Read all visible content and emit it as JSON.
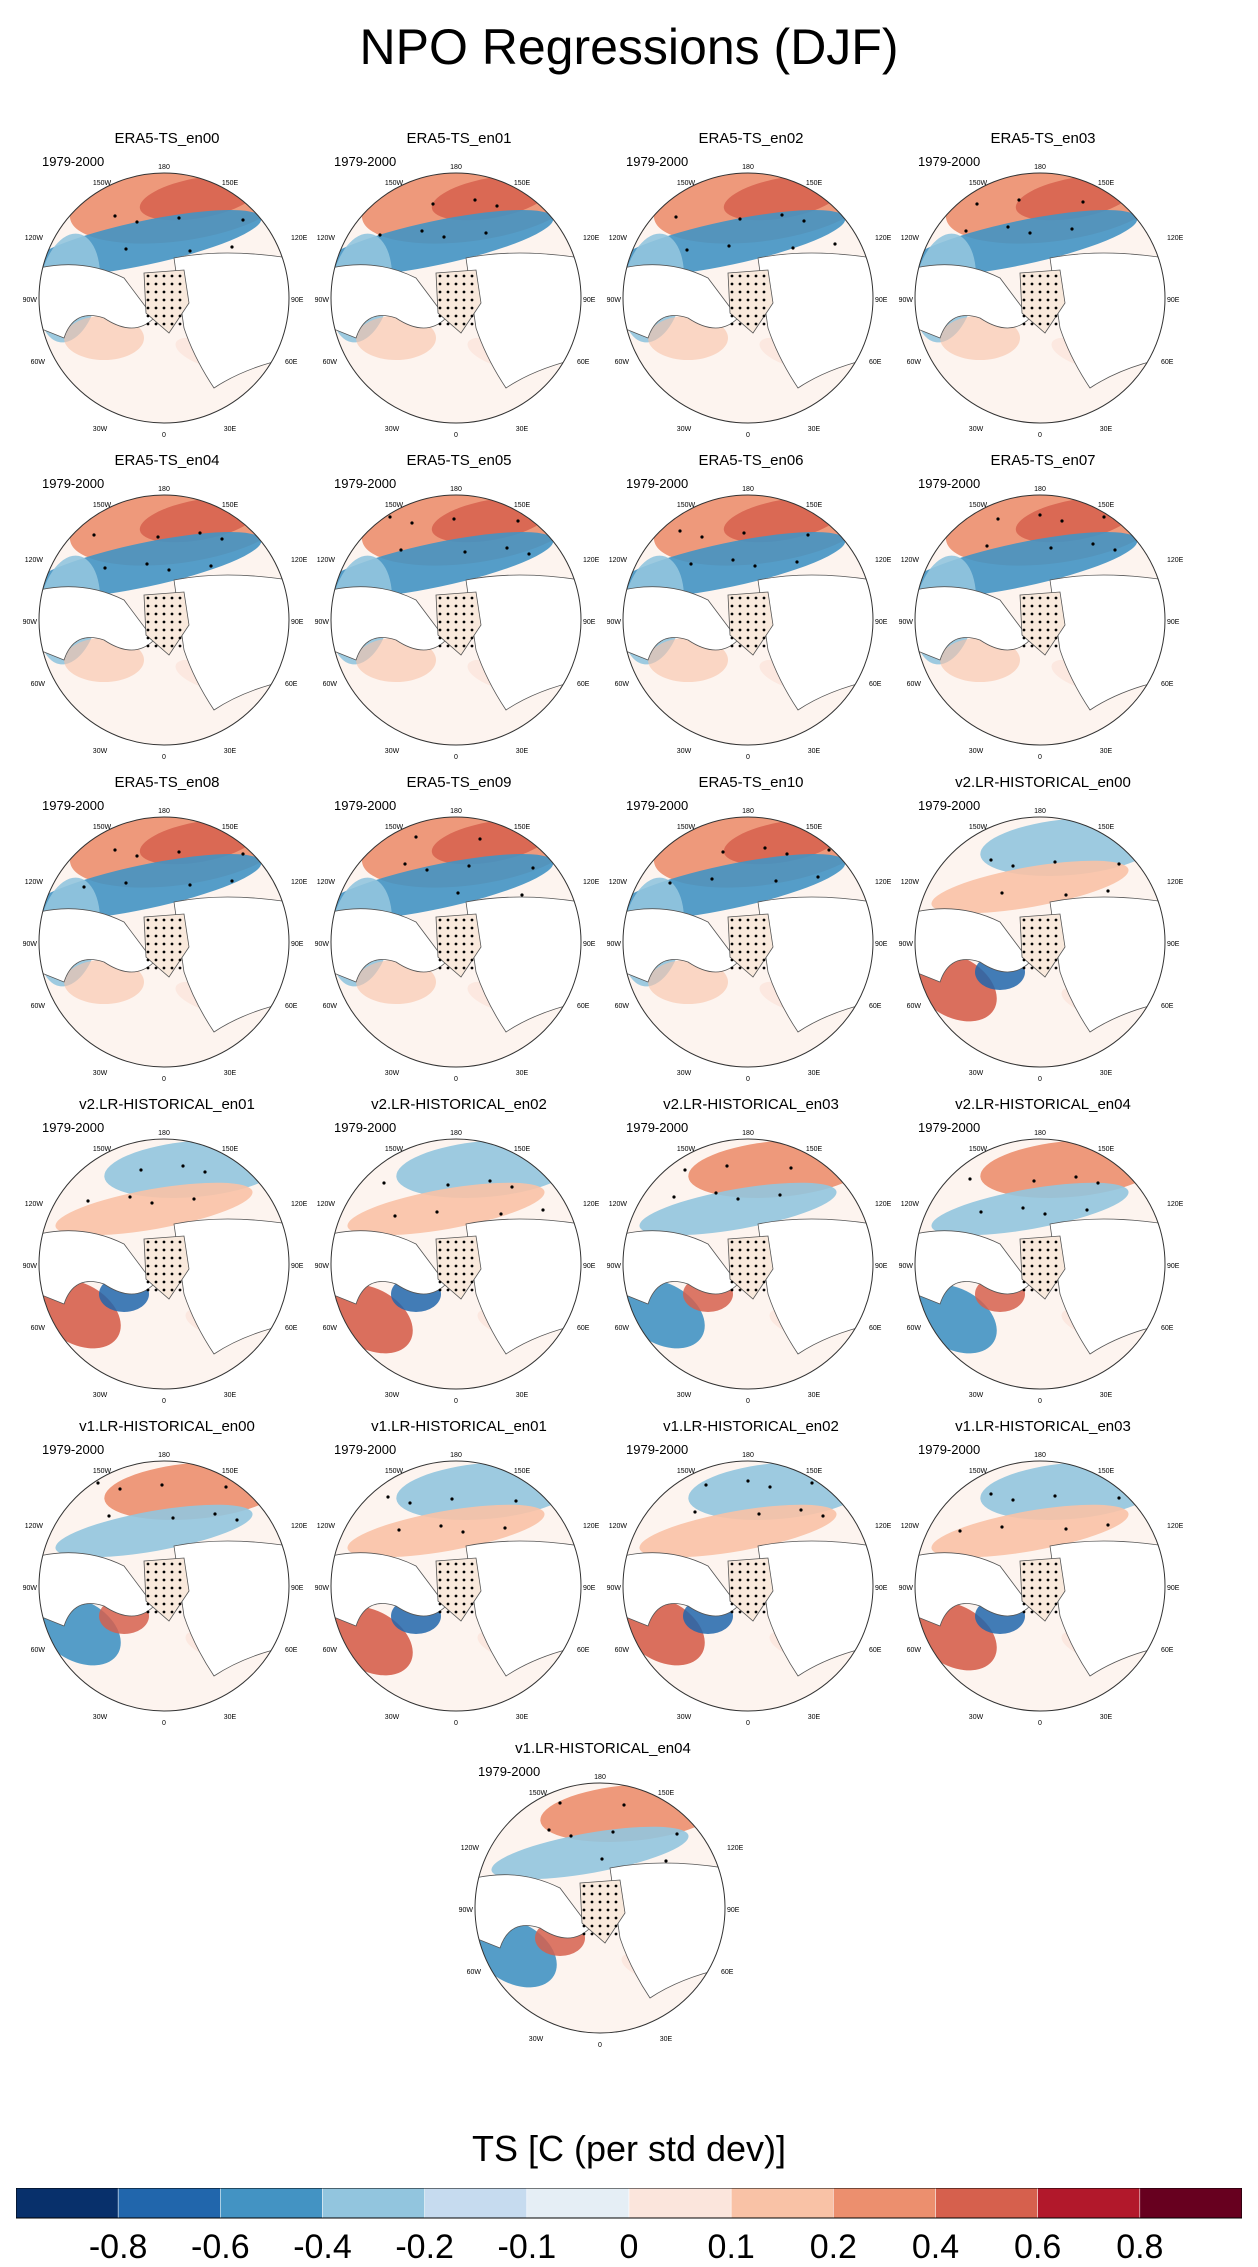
{
  "title": "NPO Regressions (DJF)",
  "colorbar": {
    "title": "TS [C (per std dev)]",
    "levels": [
      -0.8,
      -0.6,
      -0.4,
      -0.2,
      -0.1,
      0,
      0.1,
      0.2,
      0.4,
      0.6,
      0.8
    ],
    "colors": [
      "#08306b",
      "#2166ac",
      "#4393c3",
      "#92c5de",
      "#c6dbef",
      "#e5eef5",
      "#fbe5dc",
      "#f9c2a6",
      "#ec8f6e",
      "#d6604d",
      "#b2182b",
      "#67001f"
    ]
  },
  "map_labels": {
    "lon_top": "180",
    "lon_150w": "150W",
    "lon_150e": "150E",
    "lon_120w": "120W",
    "lon_120e": "120E",
    "lon_90w": "90W",
    "lon_90e": "90E",
    "lon_60w": "60W",
    "lon_60e": "60E",
    "lon_30w": "30W",
    "lon_30e": "30E",
    "lon_bottom": "0"
  },
  "chart_data": {
    "type": "polar-stereographic contour map panels",
    "variable": "TS",
    "season": "DJF",
    "projection": "North polar stereographic",
    "hatching": "stipple dots indicate significance",
    "panels": [
      {
        "name": "ERA5-TS_en00",
        "period": "1979-2000",
        "pattern": "era5"
      },
      {
        "name": "ERA5-TS_en01",
        "period": "1979-2000",
        "pattern": "era5"
      },
      {
        "name": "ERA5-TS_en02",
        "period": "1979-2000",
        "pattern": "era5"
      },
      {
        "name": "ERA5-TS_en03",
        "period": "1979-2000",
        "pattern": "era5"
      },
      {
        "name": "ERA5-TS_en04",
        "period": "1979-2000",
        "pattern": "era5"
      },
      {
        "name": "ERA5-TS_en05",
        "period": "1979-2000",
        "pattern": "era5"
      },
      {
        "name": "ERA5-TS_en06",
        "period": "1979-2000",
        "pattern": "era5"
      },
      {
        "name": "ERA5-TS_en07",
        "period": "1979-2000",
        "pattern": "era5"
      },
      {
        "name": "ERA5-TS_en08",
        "period": "1979-2000",
        "pattern": "era5"
      },
      {
        "name": "ERA5-TS_en09",
        "period": "1979-2000",
        "pattern": "era5"
      },
      {
        "name": "ERA5-TS_en10",
        "period": "1979-2000",
        "pattern": "era5"
      },
      {
        "name": "v2.LR-HISTORICAL_en00",
        "period": "1979-2000",
        "pattern": "model"
      },
      {
        "name": "v2.LR-HISTORICAL_en01",
        "period": "1979-2000",
        "pattern": "model"
      },
      {
        "name": "v2.LR-HISTORICAL_en02",
        "period": "1979-2000",
        "pattern": "model"
      },
      {
        "name": "v2.LR-HISTORICAL_en03",
        "period": "1979-2000",
        "pattern": "model"
      },
      {
        "name": "v2.LR-HISTORICAL_en04",
        "period": "1979-2000",
        "pattern": "model"
      },
      {
        "name": "v1.LR-HISTORICAL_en00",
        "period": "1979-2000",
        "pattern": "model"
      },
      {
        "name": "v1.LR-HISTORICAL_en01",
        "period": "1979-2000",
        "pattern": "model"
      },
      {
        "name": "v1.LR-HISTORICAL_en02",
        "period": "1979-2000",
        "pattern": "model"
      },
      {
        "name": "v1.LR-HISTORICAL_en03",
        "period": "1979-2000",
        "pattern": "model"
      },
      {
        "name": "v1.LR-HISTORICAL_en04",
        "period": "1979-2000",
        "pattern": "model"
      }
    ]
  }
}
